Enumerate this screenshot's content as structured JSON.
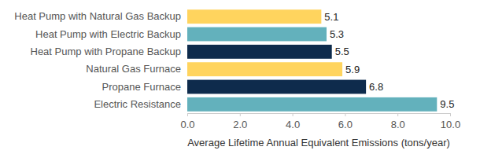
{
  "chart_data": {
    "type": "bar",
    "orientation": "horizontal",
    "categories": [
      "Heat Pump with Natural Gas Backup",
      "Heat Pump with Electric Backup",
      "Heat Pump with Propane Backup",
      "Natural Gas Furnace",
      "Propane Furnace",
      "Electric Resistance"
    ],
    "values": [
      5.1,
      5.3,
      5.5,
      5.9,
      6.8,
      9.5
    ],
    "colors": [
      "#ffd45e",
      "#63b1bc",
      "#0e2b4c",
      "#ffd45e",
      "#0e2b4c",
      "#63b1bc"
    ],
    "x_label": "Average Lifetime Annual Equivalent Emissions (tons/year)",
    "xlim": [
      0,
      10
    ],
    "xticks": [
      {
        "value": 0,
        "label": "0.0"
      },
      {
        "value": 2,
        "label": "2.0"
      },
      {
        "value": 4,
        "label": "4.0"
      },
      {
        "value": 6,
        "label": "6.0"
      },
      {
        "value": 8,
        "label": "8.0"
      },
      {
        "value": 10,
        "label": "10.0"
      }
    ],
    "grid": false,
    "data_labels": true
  }
}
